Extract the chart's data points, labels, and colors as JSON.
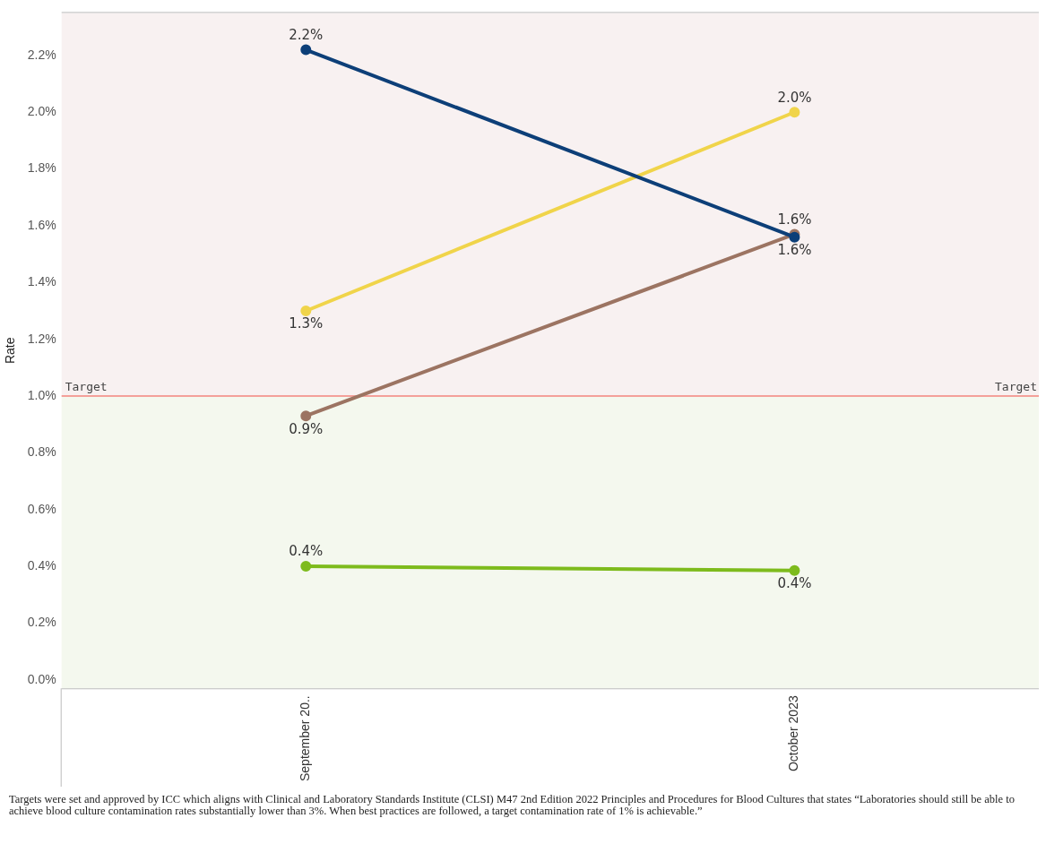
{
  "chart_data": {
    "type": "line",
    "ylabel": "Rate",
    "categories": [
      "September 20..",
      "October 2023"
    ],
    "series": [
      {
        "color": "#0d3f78",
        "values": [
          2.22,
          1.56
        ],
        "value_labels": [
          "2.2%",
          "1.6%"
        ]
      },
      {
        "color": "#f0d44a",
        "values": [
          1.3,
          2.0
        ],
        "value_labels": [
          "1.3%",
          "2.0%"
        ]
      },
      {
        "color": "#9c7462",
        "values": [
          0.93,
          1.57
        ],
        "value_labels": [
          "0.9%",
          "1.6%"
        ]
      },
      {
        "color": "#7dbb1c",
        "values": [
          0.4,
          0.385
        ],
        "value_labels": [
          "0.4%",
          "0.4%"
        ]
      }
    ],
    "ylim": [
      -0.03,
      2.35
    ],
    "yticks": [
      {
        "value": 0,
        "label": "0.0%"
      },
      {
        "value": 0.2,
        "label": "0.2%"
      },
      {
        "value": 0.4,
        "label": "0.4%"
      },
      {
        "value": 0.6,
        "label": "0.6%"
      },
      {
        "value": 0.8,
        "label": "0.8%"
      },
      {
        "value": 1.0,
        "label": "1.0%"
      },
      {
        "value": 1.2,
        "label": "1.2%"
      },
      {
        "value": 1.4,
        "label": "1.4%"
      },
      {
        "value": 1.6,
        "label": "1.6%"
      },
      {
        "value": 1.8,
        "label": "1.8%"
      },
      {
        "value": 2.0,
        "label": "2.0%"
      },
      {
        "value": 2.2,
        "label": "2.2%"
      }
    ],
    "ref_lines": [
      {
        "axis": "y",
        "value": 1.0,
        "label": "Target",
        "color": "#f4a09a"
      }
    ],
    "bands": [
      {
        "axis": "y",
        "from": 1.0,
        "to": 2.35,
        "color": "#f8f1f1"
      },
      {
        "axis": "y",
        "from": -0.03,
        "to": 1.0,
        "color": "#f4f8ee"
      }
    ],
    "legend": false,
    "marker": "circle",
    "line_style": "solid",
    "annotations": [
      "Targets were set and approved by ICC which aligns with Clinical and Laboratory Standards Institute (CLSI) M47 2nd Edition 2022 Principles and Procedures for Blood Cultures that states “Laboratories should still be able to achieve blood culture contamination rates substantially lower than 3%. When best practices are followed, a target contamination rate of 1% is achievable.”"
    ]
  }
}
